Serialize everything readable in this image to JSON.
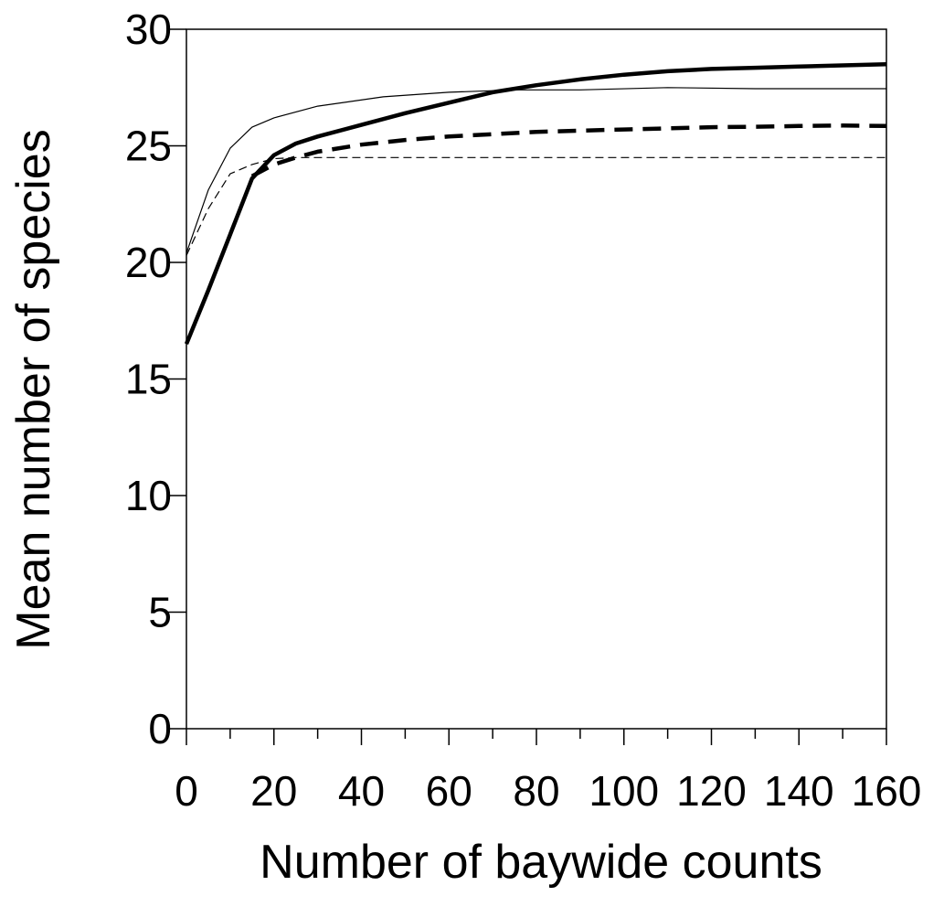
{
  "chart_data": {
    "type": "line",
    "title": "",
    "xlabel": "Number of baywide counts",
    "ylabel": "Mean number of species",
    "xlim": [
      0,
      160
    ],
    "ylim": [
      0,
      30
    ],
    "x_ticks": [
      0,
      20,
      40,
      60,
      80,
      100,
      120,
      140,
      160
    ],
    "x_minor_step": 10,
    "y_ticks": [
      0,
      5,
      10,
      15,
      20,
      25,
      30
    ],
    "grid": false,
    "legend": "none",
    "series": [
      {
        "style": "thin-solid",
        "x": [
          0,
          5,
          10,
          15,
          20,
          30,
          45,
          60,
          75,
          90,
          110,
          130,
          160
        ],
        "y": [
          20.4,
          23.1,
          24.9,
          25.8,
          26.2,
          26.7,
          27.1,
          27.3,
          27.4,
          27.4,
          27.5,
          27.45,
          27.45
        ]
      },
      {
        "style": "thin-dashed",
        "x": [
          0,
          5,
          10,
          15,
          20,
          25,
          30,
          60,
          100,
          160
        ],
        "y": [
          20.3,
          22.3,
          23.8,
          24.2,
          24.45,
          24.5,
          24.5,
          24.5,
          24.5,
          24.5
        ]
      },
      {
        "style": "thick-solid",
        "x": [
          0,
          5,
          10,
          15,
          20,
          25,
          30,
          40,
          50,
          60,
          70,
          80,
          90,
          100,
          110,
          120,
          130,
          140,
          150,
          160
        ],
        "y": [
          16.5,
          18.8,
          21.2,
          23.6,
          24.6,
          25.1,
          25.4,
          25.9,
          26.4,
          26.85,
          27.3,
          27.6,
          27.85,
          28.05,
          28.2,
          28.3,
          28.35,
          28.4,
          28.45,
          28.5
        ]
      },
      {
        "style": "thick-dashed",
        "x": [
          15,
          20,
          25,
          30,
          40,
          50,
          60,
          70,
          80,
          90,
          100,
          110,
          120,
          130,
          140,
          150,
          160
        ],
        "y": [
          23.7,
          24.2,
          24.5,
          24.75,
          25.05,
          25.25,
          25.4,
          25.5,
          25.6,
          25.65,
          25.7,
          25.75,
          25.8,
          25.82,
          25.85,
          25.87,
          25.85
        ]
      }
    ]
  }
}
